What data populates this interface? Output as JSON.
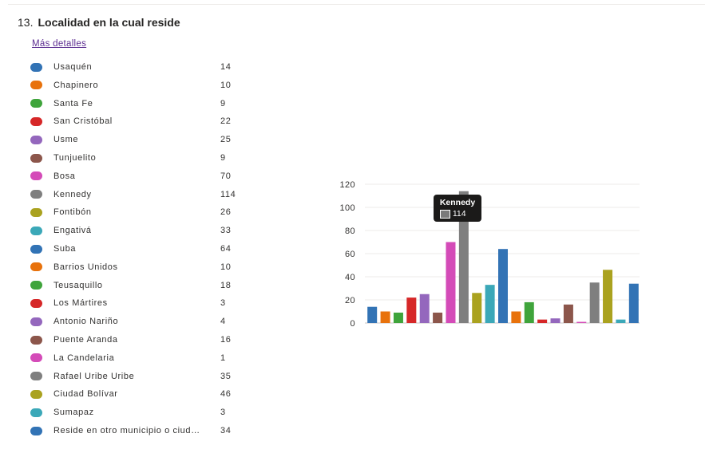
{
  "question": {
    "number": "13.",
    "title": "Localidad en la cual reside",
    "more_details": "Más detalles"
  },
  "legend_items": [
    {
      "label": "Usaquén",
      "count": "14",
      "color": "#3273b5"
    },
    {
      "label": "Chapinero",
      "count": "10",
      "color": "#e8720c"
    },
    {
      "label": "Santa Fe",
      "count": "9",
      "color": "#3fa43b"
    },
    {
      "label": "San Cristóbal",
      "count": "22",
      "color": "#d62728"
    },
    {
      "label": "Usme",
      "count": "25",
      "color": "#9467bd"
    },
    {
      "label": "Tunjuelito",
      "count": "9",
      "color": "#8c564b"
    },
    {
      "label": "Bosa",
      "count": "70",
      "color": "#d44bb8"
    },
    {
      "label": "Kennedy",
      "count": "114",
      "color": "#7f7f7f"
    },
    {
      "label": "Fontibón",
      "count": "26",
      "color": "#aaa21f"
    },
    {
      "label": "Engativá",
      "count": "33",
      "color": "#3ba8b8"
    },
    {
      "label": "Suba",
      "count": "64",
      "color": "#3273b5"
    },
    {
      "label": "Barrios Unidos",
      "count": "10",
      "color": "#e8720c"
    },
    {
      "label": "Teusaquillo",
      "count": "18",
      "color": "#3fa43b"
    },
    {
      "label": "Los Mártires",
      "count": "3",
      "color": "#d62728"
    },
    {
      "label": "Antonio Nariño",
      "count": "4",
      "color": "#9467bd"
    },
    {
      "label": "Puente Aranda",
      "count": "16",
      "color": "#8c564b"
    },
    {
      "label": "La Candelaria",
      "count": "1",
      "color": "#d44bb8"
    },
    {
      "label": "Rafael Uribe Uribe",
      "count": "35",
      "color": "#7f7f7f"
    },
    {
      "label": "Ciudad Bolívar",
      "count": "46",
      "color": "#aaa21f"
    },
    {
      "label": "Sumapaz",
      "count": "3",
      "color": "#3ba8b8"
    },
    {
      "label": "Reside en otro municipio o ciud…",
      "count": "34",
      "color": "#3273b5"
    }
  ],
  "chart_data": {
    "type": "bar",
    "values": [
      14,
      10,
      9,
      22,
      25,
      9,
      70,
      114,
      26,
      33,
      64,
      10,
      18,
      3,
      4,
      16,
      1,
      35,
      46,
      3,
      34
    ],
    "colors": [
      "#3273b5",
      "#e8720c",
      "#3fa43b",
      "#d62728",
      "#9467bd",
      "#8c564b",
      "#d44bb8",
      "#7f7f7f",
      "#aaa21f",
      "#3ba8b8",
      "#3273b5",
      "#e8720c",
      "#3fa43b",
      "#d62728",
      "#9467bd",
      "#8c564b",
      "#d44bb8",
      "#7f7f7f",
      "#aaa21f",
      "#3ba8b8",
      "#3273b5"
    ],
    "ylim": [
      0,
      120
    ],
    "yticks": [
      "0",
      "20",
      "40",
      "60",
      "80",
      "100",
      "120"
    ],
    "grid": true
  },
  "tooltip": {
    "title": "Kennedy",
    "value": "114"
  }
}
